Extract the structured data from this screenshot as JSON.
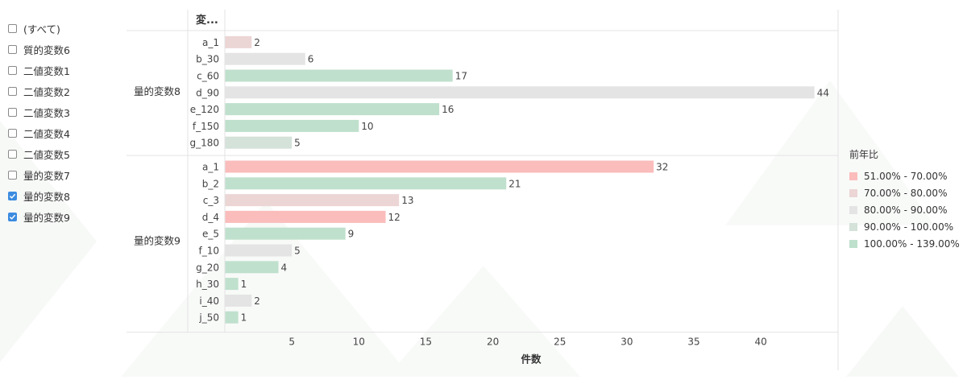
{
  "filter": {
    "items": [
      {
        "label": "(すべて)",
        "checked": false
      },
      {
        "label": "質的変数6",
        "checked": false
      },
      {
        "label": "二値変数1",
        "checked": false
      },
      {
        "label": "二値変数2",
        "checked": false
      },
      {
        "label": "二値変数3",
        "checked": false
      },
      {
        "label": "二値変数4",
        "checked": false
      },
      {
        "label": "二値変数5",
        "checked": false
      },
      {
        "label": "量的変数7",
        "checked": false
      },
      {
        "label": "量的変数8",
        "checked": true
      },
      {
        "label": "量的変数9",
        "checked": true
      }
    ]
  },
  "legend": {
    "title": "前年比",
    "items": [
      {
        "label": "51.00% - 70.00%",
        "color": "#fbbcbc"
      },
      {
        "label": "70.00% - 80.00%",
        "color": "#ecd5d5"
      },
      {
        "label": "80.00% - 90.00%",
        "color": "#e4e4e4"
      },
      {
        "label": "90.00% - 100.00%",
        "color": "#d4e2d9"
      },
      {
        "label": "100.00% - 139.00%",
        "color": "#bfe0cd"
      }
    ]
  },
  "chart_data": {
    "type": "bar",
    "orientation": "horizontal",
    "column_header": "変...",
    "xlabel": "件数",
    "xlim": [
      0,
      46
    ],
    "x_ticks": [
      5,
      10,
      15,
      20,
      25,
      30,
      35,
      40
    ],
    "grid": false,
    "groups": [
      {
        "name": "量的変数8",
        "bars": [
          {
            "label": "a_1",
            "value": 2,
            "color": "#ecd5d5"
          },
          {
            "label": "b_30",
            "value": 6,
            "color": "#e4e4e4"
          },
          {
            "label": "c_60",
            "value": 17,
            "color": "#bfe0cd"
          },
          {
            "label": "d_90",
            "value": 44,
            "color": "#e4e4e4"
          },
          {
            "label": "e_120",
            "value": 16,
            "color": "#bfe0cd"
          },
          {
            "label": "f_150",
            "value": 10,
            "color": "#bfe0cd"
          },
          {
            "label": "g_180",
            "value": 5,
            "color": "#d4e2d9"
          }
        ]
      },
      {
        "name": "量的変数9",
        "bars": [
          {
            "label": "a_1",
            "value": 32,
            "color": "#fbbcbc"
          },
          {
            "label": "b_2",
            "value": 21,
            "color": "#bfe0cd"
          },
          {
            "label": "c_3",
            "value": 13,
            "color": "#ecd5d5"
          },
          {
            "label": "d_4",
            "value": 12,
            "color": "#fbbcbc"
          },
          {
            "label": "e_5",
            "value": 9,
            "color": "#bfe0cd"
          },
          {
            "label": "f_10",
            "value": 5,
            "color": "#e4e4e4"
          },
          {
            "label": "g_20",
            "value": 4,
            "color": "#bfe0cd"
          },
          {
            "label": "h_30",
            "value": 1,
            "color": "#bfe0cd"
          },
          {
            "label": "i_40",
            "value": 2,
            "color": "#e4e4e4"
          },
          {
            "label": "j_50",
            "value": 1,
            "color": "#bfe0cd"
          }
        ]
      }
    ]
  }
}
